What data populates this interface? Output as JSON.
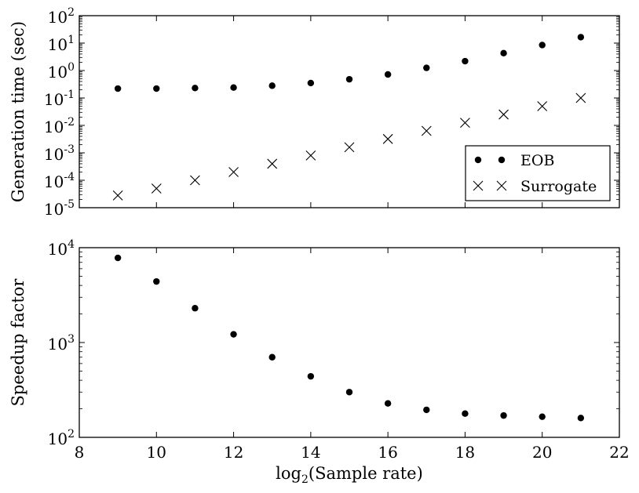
{
  "chart_data": [
    {
      "type": "scatter",
      "title": "",
      "xlabel": "",
      "ylabel": "Generation time (sec)",
      "yscale": "log",
      "xlim": [
        8,
        22
      ],
      "ylim": [
        1e-05,
        100
      ],
      "x": [
        9,
        10,
        11,
        12,
        13,
        14,
        15,
        16,
        17,
        18,
        19,
        20,
        21
      ],
      "xticks_shown": false,
      "yticks": [
        {
          "base": "10",
          "exp": "-5",
          "value": 1e-05
        },
        {
          "base": "10",
          "exp": "-4",
          "value": 0.0001
        },
        {
          "base": "10",
          "exp": "-3",
          "value": 0.001
        },
        {
          "base": "10",
          "exp": "-2",
          "value": 0.01
        },
        {
          "base": "10",
          "exp": "-1",
          "value": 0.1
        },
        {
          "base": "10",
          "exp": "0",
          "value": 1
        },
        {
          "base": "10",
          "exp": "1",
          "value": 10
        },
        {
          "base": "10",
          "exp": "2",
          "value": 100
        }
      ],
      "series": [
        {
          "name": "EOB",
          "marker": "circle",
          "color": "#000000",
          "values": [
            0.22,
            0.22,
            0.23,
            0.24,
            0.28,
            0.35,
            0.48,
            0.72,
            1.25,
            2.2,
            4.3,
            8.5,
            16.5
          ]
        },
        {
          "name": "Surrogate",
          "marker": "x",
          "color": "#000000",
          "values": [
            2.8e-05,
            5e-05,
            0.0001,
            0.0002,
            0.0004,
            0.0008,
            0.0016,
            0.0032,
            0.0063,
            0.0125,
            0.025,
            0.05,
            0.1
          ]
        }
      ],
      "legend": {
        "position": "lower-right",
        "entries": [
          "EOB",
          "Surrogate"
        ]
      },
      "grid": false
    },
    {
      "type": "scatter",
      "title": "",
      "xlabel": "log2(Sample rate)",
      "xlabel_parts": {
        "prefix": "log",
        "sub": "2",
        "suffix": "(Sample rate)"
      },
      "ylabel": "Speedup factor",
      "yscale": "log",
      "xlim": [
        8,
        22
      ],
      "ylim": [
        100,
        10000
      ],
      "xticks": [
        "8",
        "10",
        "12",
        "14",
        "16",
        "18",
        "20",
        "22"
      ],
      "yticks": [
        {
          "base": "10",
          "exp": "2",
          "value": 100
        },
        {
          "base": "10",
          "exp": "3",
          "value": 1000
        },
        {
          "base": "10",
          "exp": "4",
          "value": 10000
        }
      ],
      "x": [
        9,
        10,
        11,
        12,
        13,
        14,
        15,
        16,
        17,
        18,
        19,
        20,
        21
      ],
      "series": [
        {
          "marker": "circle",
          "color": "#000000",
          "values": [
            7800,
            4400,
            2300,
            1220,
            700,
            440,
            300,
            228,
            195,
            178,
            170,
            165,
            160
          ]
        }
      ],
      "grid": false
    }
  ]
}
